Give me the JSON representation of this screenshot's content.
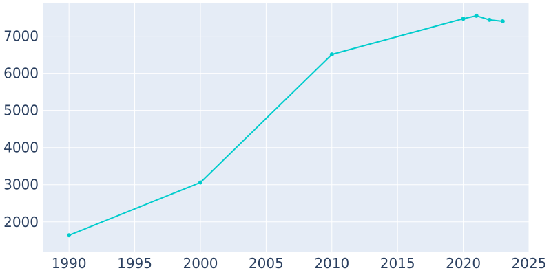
{
  "chart_data": {
    "type": "line",
    "title": "",
    "xlabel": "",
    "ylabel": "",
    "xlim": [
      1988,
      2025
    ],
    "ylim": [
      1200,
      7900
    ],
    "x_ticks": [
      1990,
      1995,
      2000,
      2005,
      2010,
      2015,
      2020,
      2025
    ],
    "y_ticks": [
      2000,
      3000,
      4000,
      5000,
      6000,
      7000
    ],
    "grid": true,
    "legend": "none",
    "series": [
      {
        "points": [
          {
            "x": 1990,
            "y": 1640
          },
          {
            "x": 2000,
            "y": 3060
          },
          {
            "x": 2010,
            "y": 6510
          },
          {
            "x": 2020,
            "y": 7470
          },
          {
            "x": 2021,
            "y": 7550
          },
          {
            "x": 2022,
            "y": 7440
          },
          {
            "x": 2023,
            "y": 7400
          }
        ]
      }
    ]
  },
  "colors": {
    "line": "#00cccc",
    "plot_background": "#e5ecf6",
    "grid": "#ffffff",
    "tick_text": "#2a3f5f"
  }
}
